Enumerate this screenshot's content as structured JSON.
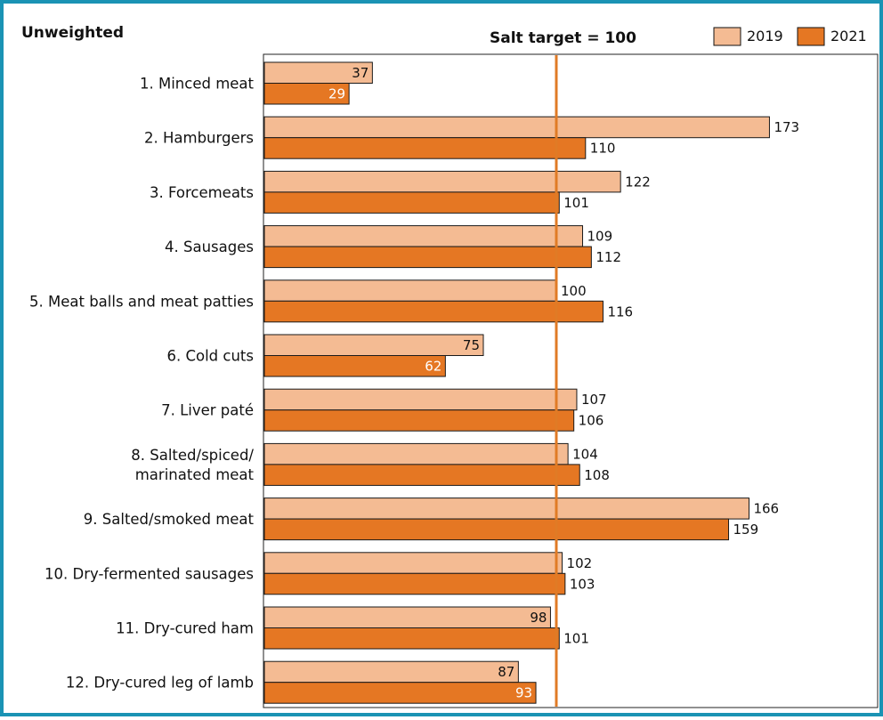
{
  "chart_data": {
    "type": "bar",
    "orientation": "horizontal",
    "title": "Unweighted",
    "reference_line": {
      "label": "Salt target = 100",
      "value": 100,
      "color": "#e07b26"
    },
    "categories": [
      [
        "1. Minced meat"
      ],
      [
        "2. Hamburgers"
      ],
      [
        "3. Forcemeats"
      ],
      [
        "4. Sausages"
      ],
      [
        "5. Meat balls and meat patties"
      ],
      [
        "6. Cold cuts"
      ],
      [
        "7. Liver paté"
      ],
      [
        "8. Salted/spiced/",
        "marinated meat"
      ],
      [
        "9. Salted/smoked meat"
      ],
      [
        "10. Dry-fermented sausages"
      ],
      [
        "11. Dry-cured ham"
      ],
      [
        "12. Dry-cured leg of lamb"
      ]
    ],
    "series": [
      {
        "name": "2019",
        "color": "#f4bb93",
        "values": [
          37,
          173,
          122,
          109,
          100,
          75,
          107,
          104,
          166,
          102,
          98,
          87
        ]
      },
      {
        "name": "2021",
        "color": "#e57723",
        "values": [
          29,
          110,
          101,
          112,
          116,
          62,
          106,
          108,
          159,
          103,
          101,
          93
        ]
      }
    ],
    "data_labels_inside": [
      [
        true,
        false,
        false,
        false,
        false,
        true,
        false,
        false,
        false,
        false,
        true,
        true
      ],
      [
        true,
        false,
        false,
        false,
        false,
        true,
        false,
        false,
        false,
        false,
        false,
        true
      ]
    ],
    "legend_position": "top-right",
    "grid": false
  }
}
